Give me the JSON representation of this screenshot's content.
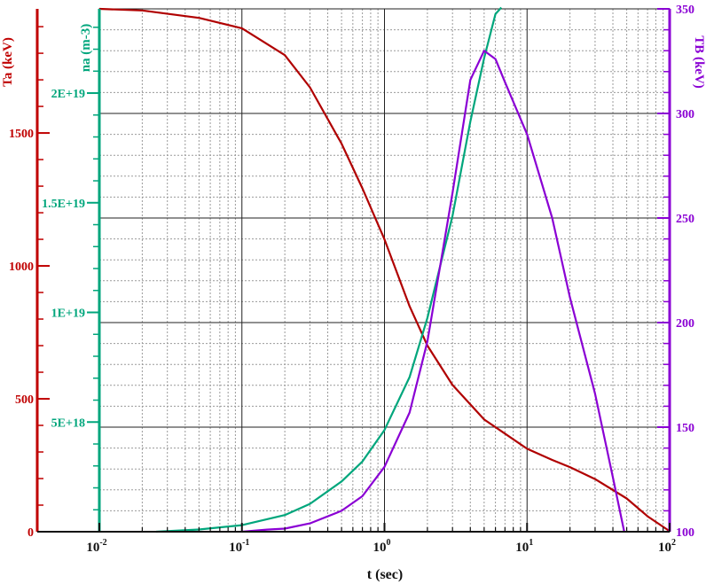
{
  "chart_data": {
    "type": "line",
    "xlabel": "t (sec)",
    "xscale": "log",
    "xlim": [
      0.01,
      100
    ],
    "x_ticks": [
      {
        "base": "10",
        "exp": "-2",
        "value": 0.01
      },
      {
        "base": "10",
        "exp": "-1",
        "value": 0.1
      },
      {
        "base": "10",
        "exp": "0",
        "value": 1
      },
      {
        "base": "10",
        "exp": "1",
        "value": 10
      },
      {
        "base": "10",
        "exp": "2",
        "value": 100
      }
    ],
    "grid": true,
    "axes": {
      "ta": {
        "label": "Ta (keV)",
        "color": "#c00000",
        "ylim": [
          0,
          1967
        ],
        "ticks": [
          {
            "label": "0",
            "value": 0
          },
          {
            "label": "500",
            "value": 500
          },
          {
            "label": "1000",
            "value": 1000
          },
          {
            "label": "1500",
            "value": 1500
          }
        ]
      },
      "na": {
        "label": "na (m-3)",
        "color": "#00a67c",
        "ylim": [
          0,
          2.384e+19
        ],
        "ticks": [
          {
            "label": "5E+18",
            "value": 5e+18
          },
          {
            "label": "1E+19",
            "value": 1e+19
          },
          {
            "label": "1.5E+19",
            "value": 1.5e+19
          },
          {
            "label": "2E+19",
            "value": 2e+19
          }
        ]
      },
      "tb": {
        "label": "TB (keV)",
        "color": "#8a00d4",
        "ylim": [
          100,
          350
        ],
        "ticks": [
          {
            "label": "100",
            "value": 100
          },
          {
            "label": "150",
            "value": 150
          },
          {
            "label": "200",
            "value": 200
          },
          {
            "label": "250",
            "value": 250
          },
          {
            "label": "300",
            "value": 300
          },
          {
            "label": "350",
            "value": 350
          }
        ]
      }
    },
    "series": [
      {
        "axis": "ta",
        "color": "#b00000",
        "x": [
          0.01,
          0.02,
          0.05,
          0.1,
          0.2,
          0.3,
          0.5,
          0.7,
          1.0,
          1.5,
          2.0,
          3.0,
          5.0,
          7.0,
          10,
          15,
          20,
          30,
          50,
          70,
          100
        ],
        "y": [
          1967,
          1961,
          1933,
          1894,
          1793,
          1672,
          1460,
          1292,
          1100,
          848,
          700,
          552,
          422,
          369,
          312,
          270,
          243,
          198,
          125,
          58,
          2
        ]
      },
      {
        "axis": "na",
        "color": "#00a67c",
        "x": [
          0.025,
          0.05,
          0.1,
          0.2,
          0.3,
          0.5,
          0.7,
          1.0,
          1.5,
          2.0,
          3.0,
          4.0,
          5.0,
          6.0,
          6.6
        ],
        "y": [
          0,
          1e+17,
          3e+17,
          7.6e+17,
          1.27e+18,
          2.29e+18,
          3.2e+18,
          4.64e+18,
          7.05e+18,
          9.75e+18,
          1.44e+19,
          1.87e+19,
          2.16e+19,
          2.36e+19,
          2.39e+19
        ]
      },
      {
        "axis": "tb",
        "color": "#8a00d4",
        "x": [
          0.1,
          0.15,
          0.2,
          0.3,
          0.5,
          0.7,
          1.0,
          1.5,
          2.0,
          3.0,
          4.0,
          5.0,
          6.0,
          7.0,
          10,
          15,
          20,
          30,
          40,
          48
        ],
        "y": [
          100,
          101,
          101.5,
          104,
          110,
          117,
          131,
          157,
          191,
          262,
          316,
          330,
          326,
          315,
          290,
          250,
          212,
          166,
          126,
          100
        ]
      }
    ]
  }
}
